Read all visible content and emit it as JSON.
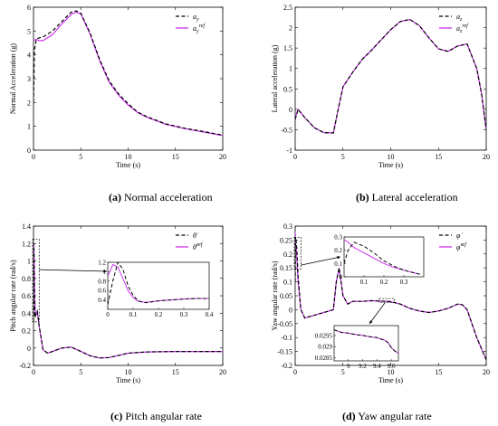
{
  "colors": {
    "ref": "#000000",
    "act": "#cc33ee",
    "axis": "#000000",
    "background": "#ffffff"
  },
  "chart_data": [
    {
      "type": "line",
      "caption_tag": "(a)",
      "caption_text": "Normal acceleration",
      "xlabel": "Time (s)",
      "ylabel": "Normal Acceleration (g)",
      "xlim": [
        0,
        20
      ],
      "ylim": [
        0,
        6
      ],
      "xticks": [
        "0",
        "5",
        "10",
        "15",
        "20"
      ],
      "yticks": [
        "0",
        "1",
        "2",
        "3",
        "4",
        "5",
        "6"
      ],
      "legend_position": "top-right",
      "series": [
        {
          "name": "a_y",
          "name_main": "a",
          "name_sub": "y",
          "name_sup": "",
          "style": "dashed",
          "x": [
            0,
            0.1,
            0.3,
            0.5,
            1,
            2,
            3,
            4,
            4.5,
            5,
            6,
            7,
            8,
            9,
            10,
            11,
            12,
            14,
            16,
            18,
            20
          ],
          "y": [
            2.0,
            4.2,
            4.65,
            4.7,
            4.75,
            5.0,
            5.4,
            5.8,
            5.85,
            5.75,
            4.9,
            3.8,
            2.9,
            2.35,
            1.95,
            1.6,
            1.4,
            1.1,
            0.92,
            0.78,
            0.63
          ]
        },
        {
          "name": "a_y^ref",
          "name_main": "a",
          "name_sub": "y",
          "name_sup": "ref",
          "style": "solid",
          "x": [
            0,
            0.3,
            0.6,
            1,
            2,
            3,
            4,
            4.5,
            5,
            6,
            7,
            8,
            9,
            10,
            11,
            12,
            14,
            16,
            18,
            20
          ],
          "y": [
            4.6,
            4.65,
            4.6,
            4.6,
            4.85,
            5.3,
            5.7,
            5.8,
            5.72,
            4.85,
            3.75,
            2.85,
            2.3,
            1.9,
            1.58,
            1.38,
            1.08,
            0.9,
            0.76,
            0.61
          ]
        }
      ]
    },
    {
      "type": "line",
      "caption_tag": "(b)",
      "caption_text": "Lateral acceleration",
      "xlabel": "Time (s)",
      "ylabel": "Lateral acceleration (g)",
      "xlim": [
        0,
        20
      ],
      "ylim": [
        -1,
        2.5
      ],
      "xticks": [
        "0",
        "5",
        "10",
        "15",
        "20"
      ],
      "yticks": [
        "-1",
        "-0.5",
        "0",
        "0.5",
        "1",
        "1.5",
        "2",
        "2.5"
      ],
      "legend_position": "top-right",
      "series": [
        {
          "name": "a_z",
          "name_main": "a",
          "name_sub": "z",
          "name_sup": "",
          "style": "dashed",
          "x": [
            0,
            0.3,
            1,
            2,
            3,
            4,
            4.5,
            5,
            6,
            7,
            8,
            9,
            10,
            11,
            12,
            13,
            14,
            15,
            16,
            17,
            18,
            19,
            19.5,
            20
          ],
          "y": [
            -0.25,
            0.0,
            -0.2,
            -0.45,
            -0.57,
            -0.58,
            0.0,
            0.55,
            0.9,
            1.22,
            1.45,
            1.7,
            1.95,
            2.15,
            2.2,
            2.05,
            1.75,
            1.48,
            1.42,
            1.55,
            1.6,
            1.0,
            0.4,
            -0.5
          ]
        },
        {
          "name": "a_z^ref",
          "name_main": "a",
          "name_sub": "z",
          "name_sup": "ref",
          "style": "solid",
          "x": [
            0,
            0.3,
            1,
            2,
            3,
            4,
            4.5,
            5,
            6,
            7,
            8,
            9,
            10,
            11,
            12,
            13,
            14,
            15,
            16,
            17,
            18,
            19,
            19.5,
            20
          ],
          "y": [
            -0.22,
            0.0,
            -0.2,
            -0.45,
            -0.57,
            -0.58,
            0.0,
            0.55,
            0.9,
            1.22,
            1.45,
            1.7,
            1.95,
            2.15,
            2.2,
            2.05,
            1.75,
            1.48,
            1.42,
            1.55,
            1.6,
            1.0,
            0.4,
            -0.5
          ]
        }
      ]
    },
    {
      "type": "line",
      "caption_tag": "(c)",
      "caption_text": "Pitch angular rate",
      "xlabel": "Time (s)",
      "ylabel": "Pitch angular rate (rad/s)",
      "xlim": [
        0,
        20
      ],
      "ylim": [
        -0.2,
        1.4
      ],
      "xticks": [
        "0",
        "5",
        "10",
        "15",
        "20"
      ],
      "yticks": [
        "-0.2",
        "0",
        "0.2",
        "0.4",
        "0.6",
        "0.8",
        "1",
        "1.2",
        "1.4"
      ],
      "legend_position": "top-right",
      "series": [
        {
          "name": "theta_dot",
          "name_main": "θ̇",
          "name_sub": "",
          "name_sup": "",
          "style": "dashed",
          "x": [
            0,
            0.03,
            0.06,
            0.1,
            0.15,
            0.25,
            0.4,
            0.6,
            1,
            1.5,
            2,
            3,
            4,
            5,
            6,
            7,
            8,
            9,
            10,
            12,
            15,
            20
          ],
          "y": [
            0.3,
            1.2,
            1.05,
            0.55,
            0.35,
            0.38,
            0.42,
            0.25,
            -0.02,
            -0.06,
            -0.04,
            0.0,
            0.01,
            -0.04,
            -0.09,
            -0.115,
            -0.11,
            -0.085,
            -0.06,
            -0.045,
            -0.04,
            -0.04
          ]
        },
        {
          "name": "theta_dot^ref",
          "name_main": "θ̇",
          "name_sub": "",
          "name_sup": "ref",
          "style": "solid",
          "x": [
            0,
            0.04,
            0.08,
            0.12,
            0.2,
            0.3,
            0.4,
            0.6,
            1,
            1.5,
            2,
            3,
            4,
            5,
            6,
            7,
            8,
            9,
            10,
            12,
            15,
            20
          ],
          "y": [
            0.9,
            1.18,
            1.0,
            0.6,
            0.38,
            0.4,
            0.42,
            0.25,
            -0.02,
            -0.06,
            -0.04,
            0.0,
            0.01,
            -0.04,
            -0.09,
            -0.115,
            -0.11,
            -0.085,
            -0.06,
            -0.045,
            -0.04,
            -0.04
          ]
        }
      ],
      "inset": {
        "xlim": [
          0,
          0.4
        ],
        "ylim": [
          0.2,
          1.2
        ],
        "xticks": [
          "0",
          "0.1",
          "0.2",
          "0.3",
          "0.4"
        ],
        "yticks": [
          "0.4",
          "0.6",
          "0.8",
          "1",
          "1.2"
        ],
        "series": [
          {
            "style": "dashed",
            "x": [
              0,
              0.02,
              0.04,
              0.06,
              0.08,
              0.1,
              0.12,
              0.15,
              0.2,
              0.25,
              0.3,
              0.35,
              0.4
            ],
            "y": [
              0.3,
              0.8,
              1.2,
              1.05,
              0.7,
              0.5,
              0.38,
              0.34,
              0.38,
              0.4,
              0.42,
              0.43,
              0.43
            ]
          },
          {
            "style": "solid",
            "x": [
              0,
              0.02,
              0.04,
              0.06,
              0.08,
              0.1,
              0.12,
              0.15,
              0.2,
              0.25,
              0.3,
              0.35,
              0.4
            ],
            "y": [
              0.9,
              1.15,
              1.1,
              0.85,
              0.6,
              0.45,
              0.37,
              0.35,
              0.38,
              0.4,
              0.42,
              0.43,
              0.43
            ]
          }
        ]
      }
    },
    {
      "type": "line",
      "caption_tag": "(d)",
      "caption_text": "Yaw angular rate",
      "xlabel": "Time (s)",
      "ylabel": "Yaw angular rate (rad/s)",
      "xlim": [
        0,
        20
      ],
      "ylim": [
        -0.2,
        0.3
      ],
      "xticks": [
        "0",
        "5",
        "10",
        "15",
        "20"
      ],
      "yticks": [
        "-0.2",
        "-0.15",
        "-0.1",
        "-0.05",
        "0",
        "0.05",
        "0.1",
        "0.15",
        "0.2",
        "0.25",
        "0.3"
      ],
      "legend_position": "top-right",
      "series": [
        {
          "name": "phi_dot",
          "name_main": "φ̇",
          "name_sub": "",
          "name_sup": "",
          "style": "dashed",
          "x": [
            0,
            0.05,
            0.15,
            0.3,
            0.6,
            1,
            2,
            3,
            4,
            4.3,
            4.6,
            5,
            5.5,
            6,
            7,
            8,
            9,
            10,
            11,
            12,
            13,
            14,
            15,
            16,
            17,
            17.5,
            18,
            19,
            20
          ],
          "y": [
            0.1,
            0.26,
            0.23,
            0.12,
            0.0,
            -0.03,
            -0.02,
            -0.01,
            0.0,
            0.1,
            0.15,
            0.05,
            0.02,
            0.03,
            0.03,
            0.032,
            0.031,
            0.029,
            0.02,
            0.005,
            -0.005,
            -0.01,
            -0.005,
            0.005,
            0.02,
            0.018,
            0.0,
            -0.1,
            -0.18
          ]
        },
        {
          "name": "phi_dot^ref",
          "name_main": "φ̇",
          "name_sub": "",
          "name_sup": "ref",
          "style": "solid",
          "x": [
            0,
            0.05,
            0.15,
            0.3,
            0.6,
            1,
            2,
            3,
            4,
            4.3,
            4.6,
            5,
            5.5,
            6,
            7,
            8,
            9,
            10,
            11,
            12,
            13,
            14,
            15,
            16,
            17,
            17.5,
            18,
            19,
            20
          ],
          "y": [
            0.28,
            0.24,
            0.2,
            0.1,
            0.0,
            -0.03,
            -0.02,
            -0.01,
            0.0,
            0.1,
            0.15,
            0.05,
            0.02,
            0.03,
            0.03,
            0.032,
            0.031,
            0.029,
            0.02,
            0.005,
            -0.005,
            -0.01,
            -0.005,
            0.005,
            0.02,
            0.018,
            0.0,
            -0.1,
            -0.18
          ]
        }
      ],
      "inset_top": {
        "xlim": [
          0,
          0.4
        ],
        "ylim": [
          0,
          0.3
        ],
        "xticks": [
          "0.1",
          "0.2",
          "0.3"
        ],
        "yticks": [
          "0",
          "0.1",
          "0.2",
          "0.3"
        ],
        "series": [
          {
            "style": "dashed",
            "x": [
              0,
              0.02,
              0.05,
              0.1,
              0.15,
              0.2,
              0.25,
              0.3,
              0.35,
              0.38
            ],
            "y": [
              0.1,
              0.2,
              0.26,
              0.23,
              0.18,
              0.12,
              0.08,
              0.05,
              0.03,
              0.02
            ]
          },
          {
            "style": "solid",
            "x": [
              0,
              0.02,
              0.05,
              0.1,
              0.15,
              0.2,
              0.25,
              0.3,
              0.35,
              0.38
            ],
            "y": [
              0.28,
              0.26,
              0.22,
              0.18,
              0.14,
              0.1,
              0.07,
              0.05,
              0.03,
              0.02
            ]
          }
        ]
      },
      "inset_bottom": {
        "xlim": [
          8.8,
          9.7
        ],
        "ylim": [
          0.02835,
          0.02995
        ],
        "xticks": [
          "9",
          "9.2",
          "9.4",
          "9.6"
        ],
        "yticks": [
          "0.0285",
          "0.029",
          "0.0295"
        ],
        "series": [
          {
            "style": "solid",
            "x": [
              8.8,
              8.9,
              9.0,
              9.1,
              9.2,
              9.3,
              9.4,
              9.5,
              9.55,
              9.6,
              9.65,
              9.7
            ],
            "y": [
              0.02975,
              0.02965,
              0.0296,
              0.02955,
              0.0295,
              0.02945,
              0.0294,
              0.0293,
              0.0292,
              0.02895,
              0.0288,
              0.0287
            ]
          },
          {
            "style": "dashed",
            "x": [
              8.8,
              8.9,
              9.0,
              9.1,
              9.2,
              9.3,
              9.4,
              9.5,
              9.55,
              9.6,
              9.65,
              9.7
            ],
            "y": [
              0.02976,
              0.02964,
              0.02961,
              0.02954,
              0.02951,
              0.02944,
              0.02941,
              0.02929,
              0.02919,
              0.02896,
              0.02879,
              0.02869
            ]
          }
        ]
      }
    }
  ]
}
